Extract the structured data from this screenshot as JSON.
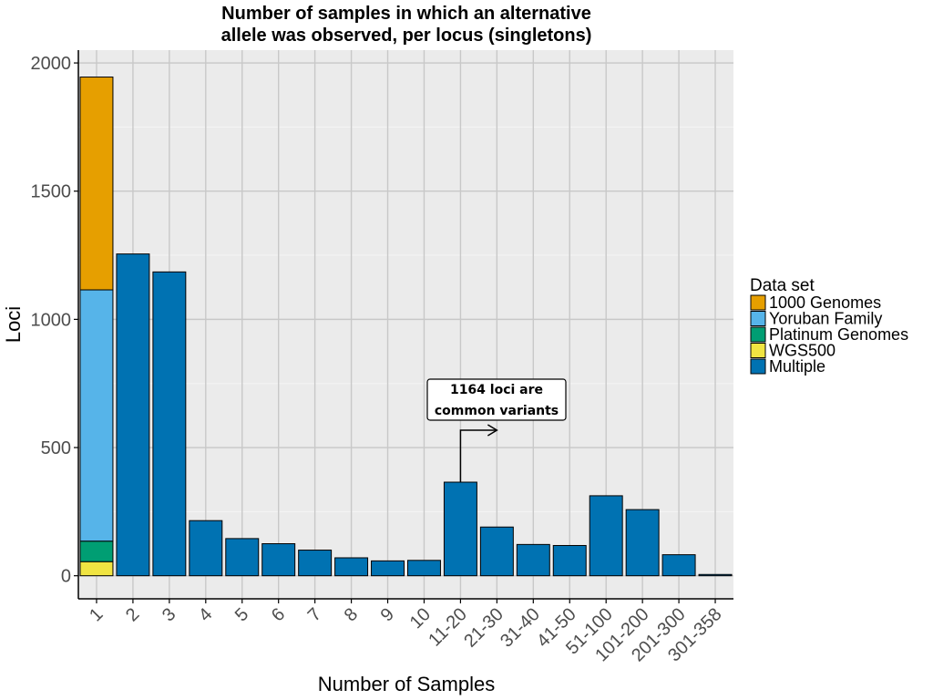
{
  "chart_data": {
    "type": "bar",
    "stacked": true,
    "title": [
      "Number of samples in which an alternative",
      "allele was observed, per locus (singletons)"
    ],
    "xlabel": "Number of Samples",
    "ylabel": "Loci",
    "ylim": [
      -90,
      2050
    ],
    "yticks": [
      0,
      500,
      1000,
      1500,
      2000
    ],
    "grid": true,
    "legend_position": "right",
    "legend_title": "Data set",
    "categories": [
      "1",
      "2",
      "3",
      "4",
      "5",
      "6",
      "7",
      "8",
      "9",
      "10",
      "11-20",
      "21-30",
      "31-40",
      "41-50",
      "51-100",
      "101-200",
      "201-300",
      "301-358"
    ],
    "series": [
      {
        "name": "WGS500",
        "color": "#F0E442",
        "values": [
          55,
          0,
          0,
          0,
          0,
          0,
          0,
          0,
          0,
          0,
          0,
          0,
          0,
          0,
          0,
          0,
          0,
          0
        ]
      },
      {
        "name": "Platinum Genomes",
        "color": "#009E73",
        "values": [
          80,
          0,
          0,
          0,
          0,
          0,
          0,
          0,
          0,
          0,
          0,
          0,
          0,
          0,
          0,
          0,
          0,
          0
        ]
      },
      {
        "name": "Yoruban Family",
        "color": "#56B4E9",
        "values": [
          980,
          0,
          0,
          0,
          0,
          0,
          0,
          0,
          0,
          0,
          0,
          0,
          0,
          0,
          0,
          0,
          0,
          0
        ]
      },
      {
        "name": "1000 Genomes",
        "color": "#E69F00",
        "values": [
          830,
          0,
          0,
          0,
          0,
          0,
          0,
          0,
          0,
          0,
          0,
          0,
          0,
          0,
          0,
          0,
          0,
          0
        ]
      },
      {
        "name": "Multiple",
        "color": "#0072B2",
        "values": [
          0,
          1255,
          1185,
          215,
          145,
          125,
          100,
          70,
          58,
          60,
          365,
          190,
          122,
          118,
          312,
          258,
          82,
          5
        ]
      }
    ],
    "legend_order": [
      "1000 Genomes",
      "Yoruban Family",
      "Platinum Genomes",
      "WGS500",
      "Multiple"
    ],
    "annotation": {
      "lines": [
        "1164 loci are",
        "common variants"
      ],
      "points_from_category": "11-20",
      "points_to_category": "21-30"
    }
  }
}
